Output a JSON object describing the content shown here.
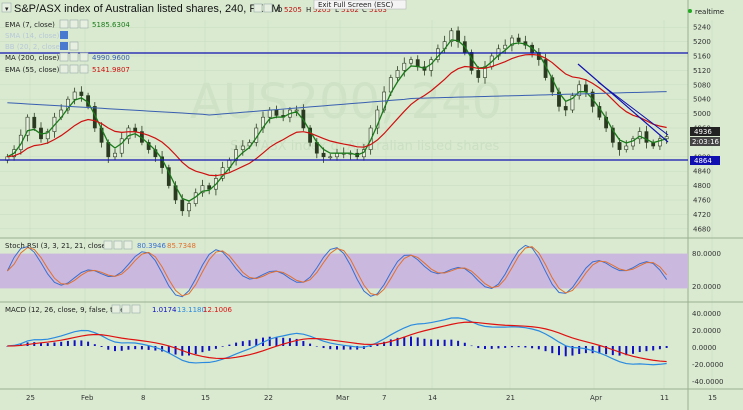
{
  "header": {
    "title": "S&P/ASX index of Australian listed shares, 240, FXCM",
    "o_label": "O",
    "o_value": "5205",
    "h_label": "H",
    "h_value": "5205",
    "l_label": "L",
    "l_value": "5162",
    "c_label": "C",
    "c_value": "5163",
    "exit_fullscreen": "Exit Full Screen (ESC)",
    "realtime": "realtime"
  },
  "watermark": {
    "symbol": "AUS200, 240",
    "sub": "S&P/ASX index of Australian listed shares"
  },
  "indicators": {
    "ema7": {
      "label": "EMA (7, close)",
      "value": "5185.6304",
      "color": "#1a7a1a"
    },
    "hidden1": {
      "label": "SMA (14, close)"
    },
    "hidden2": {
      "label": "BB (20, 2, close)"
    },
    "ma200": {
      "label": "MA (200, close)",
      "value": "4990.9600",
      "color": "#3a5fb0"
    },
    "ema55": {
      "label": "EMA (55, close)",
      "value": "5141.9807",
      "color": "#d01010"
    }
  },
  "colors": {
    "bg": "#d9ead0",
    "grid": "#c8dcc0",
    "candle": "#2a3a20",
    "hline": "#1010b0",
    "trend": "#1010b0",
    "stoch_fill": "#cbb8df",
    "stoch_k": "#3a6fd0",
    "stoch_d": "#e07030",
    "macd_line": "#2a8ae0",
    "macd_signal": "#e01010",
    "macd_hist": "#1010c0",
    "price_badge": "#222222",
    "level_badge": "#1010b0"
  },
  "price_axis": {
    "ticks": [
      "5240",
      "5200",
      "5160",
      "5120",
      "5080",
      "5040",
      "5000",
      "4960",
      "4920",
      "4880",
      "4840",
      "4800",
      "4760",
      "4720",
      "4680"
    ],
    "current_label": "4936",
    "countdown": "2:03:16",
    "level_label": "4864"
  },
  "stoch": {
    "label": "Stoch RSI (3, 3, 21, 21, close)",
    "k_value": "80.3946",
    "d_value": "85.7348",
    "axis": [
      "80.0000",
      "20.0000"
    ]
  },
  "macd": {
    "label": "MACD (12, 26, close, 9, false, true)",
    "values": [
      "1.0174",
      "13.1180",
      "12.1006"
    ],
    "axis": [
      "40.0000",
      "20.0000",
      "0.0000",
      "-20.0000",
      "-40.0000"
    ]
  },
  "time_axis": {
    "ticks": [
      "25",
      "Feb",
      "8",
      "15",
      "22",
      "Mar",
      "7",
      "14",
      "21",
      "Apr",
      "11",
      "15"
    ]
  },
  "chart_data": {
    "type": "candlestick",
    "title": "S&P/ASX index of Australian listed shares, 240, FXCM",
    "xlabel": "",
    "ylabel": "",
    "ylim": [
      4660,
      5260
    ],
    "grid": true,
    "legend": "top-left",
    "x_ticks": [
      "25",
      "Feb",
      "8",
      "15",
      "22",
      "Mar",
      "7",
      "14",
      "21",
      "Apr",
      "11",
      "15"
    ],
    "horizontal_levels": [
      5130,
      4864
    ],
    "trendline": {
      "from": 5110,
      "to": 4905
    },
    "closes": [
      4880,
      4900,
      4940,
      4990,
      4960,
      4930,
      4950,
      4990,
      5010,
      5040,
      5060,
      5050,
      5020,
      4960,
      4920,
      4880,
      4890,
      4930,
      4960,
      4950,
      4920,
      4900,
      4880,
      4850,
      4800,
      4760,
      4730,
      4750,
      4780,
      4800,
      4790,
      4820,
      4850,
      4870,
      4900,
      4910,
      4920,
      4960,
      4990,
      5010,
      4995,
      4990,
      5010,
      5010,
      4960,
      4920,
      4890,
      4880,
      4880,
      4890,
      4890,
      4890,
      4880,
      4900,
      4960,
      5010,
      5060,
      5100,
      5120,
      5140,
      5150,
      5130,
      5120,
      5150,
      5180,
      5200,
      5230,
      5200,
      5170,
      5120,
      5100,
      5130,
      5160,
      5180,
      5190,
      5210,
      5200,
      5190,
      5170,
      5150,
      5100,
      5060,
      5020,
      5010,
      5050,
      5080,
      5060,
      5020,
      4990,
      4960,
      4920,
      4900,
      4910,
      4930,
      4950,
      4920,
      4910,
      4930,
      4936
    ],
    "series": [
      {
        "name": "EMA (7, close)",
        "value": 5185.6304
      },
      {
        "name": "EMA (55, close)",
        "value": 5141.9807
      },
      {
        "name": "MA (200, close)",
        "value": 4990.96
      }
    ],
    "stoch_rsi": {
      "k": 80.3946,
      "d": 85.7348,
      "ylim": [
        0,
        100
      ],
      "bands": [
        80,
        20
      ]
    },
    "macd": {
      "hist": 1.0174,
      "macd": 13.118,
      "signal": 12.1006,
      "ylim": [
        -50,
        50
      ]
    }
  }
}
